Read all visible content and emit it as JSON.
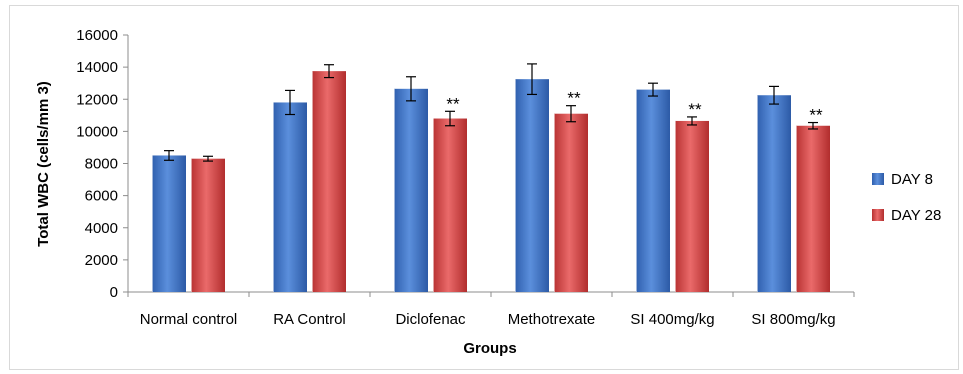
{
  "chart_data": {
    "type": "bar",
    "title": "",
    "xlabel": "Groups",
    "ylabel": "Total WBC (cells/mm 3)",
    "ylim": [
      0,
      16000
    ],
    "yticks": [
      0,
      2000,
      4000,
      6000,
      8000,
      10000,
      12000,
      14000,
      16000
    ],
    "grid": false,
    "legend_position": "right",
    "categories": [
      "Normal control",
      "RA Control",
      "Diclofenac",
      "Methotrexate",
      "SI 400mg/kg",
      "SI 800mg/kg"
    ],
    "series": [
      {
        "name": "DAY 8",
        "color": "#3f74c4",
        "values": [
          8500,
          11800,
          12650,
          13250,
          12600,
          12250
        ],
        "errors": [
          300,
          750,
          750,
          950,
          400,
          550
        ],
        "annotations": [
          "",
          "",
          "",
          "",
          "",
          ""
        ]
      },
      {
        "name": "DAY 28",
        "color": "#d64545",
        "values": [
          8300,
          13750,
          10800,
          11100,
          10650,
          10350
        ],
        "errors": [
          150,
          400,
          450,
          500,
          250,
          200
        ],
        "annotations": [
          "",
          "",
          "**",
          "**",
          "**",
          "**"
        ]
      }
    ]
  }
}
